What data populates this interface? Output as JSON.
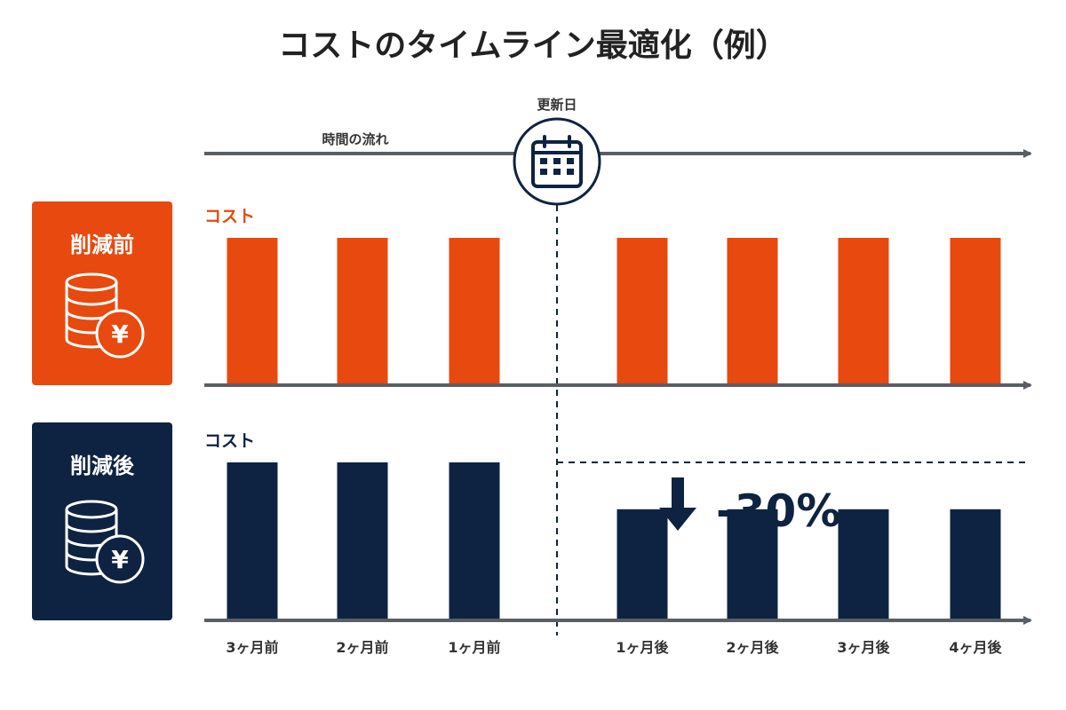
{
  "title": "コストのタイムライン最適化（例）",
  "timeline": {
    "label": "時間の流れ",
    "update_label": "更新日"
  },
  "colors": {
    "before": "#E8490E",
    "after": "#0E2341",
    "axis": "#5a5f66",
    "text": "#222222"
  },
  "panels": {
    "before": {
      "label": "削減前",
      "icon": "coins-yen-icon",
      "cost_label": "コスト"
    },
    "after": {
      "label": "削減後",
      "icon": "coins-yen-icon",
      "cost_label": "コスト"
    }
  },
  "reduction": {
    "label": "-30%",
    "icon": "down-arrow-icon"
  },
  "chart_data": [
    {
      "type": "bar",
      "categories": [
        "3ヶ月前",
        "2ヶ月前",
        "1ヶ月前",
        "1ヶ月後",
        "2ヶ月後",
        "3ヶ月後",
        "4ヶ月後"
      ],
      "series": [
        {
          "name": "削減前",
          "values": [
            100,
            100,
            100,
            100,
            100,
            100,
            100
          ]
        }
      ],
      "ylabel": "コスト",
      "ylim": [
        0,
        100
      ]
    },
    {
      "type": "bar",
      "categories": [
        "3ヶ月前",
        "2ヶ月前",
        "1ヶ月前",
        "1ヶ月後",
        "2ヶ月後",
        "3ヶ月後",
        "4ヶ月後"
      ],
      "series": [
        {
          "name": "削減後",
          "values": [
            100,
            100,
            100,
            70,
            70,
            70,
            70
          ]
        }
      ],
      "ylabel": "コスト",
      "ylim": [
        0,
        100
      ]
    }
  ]
}
